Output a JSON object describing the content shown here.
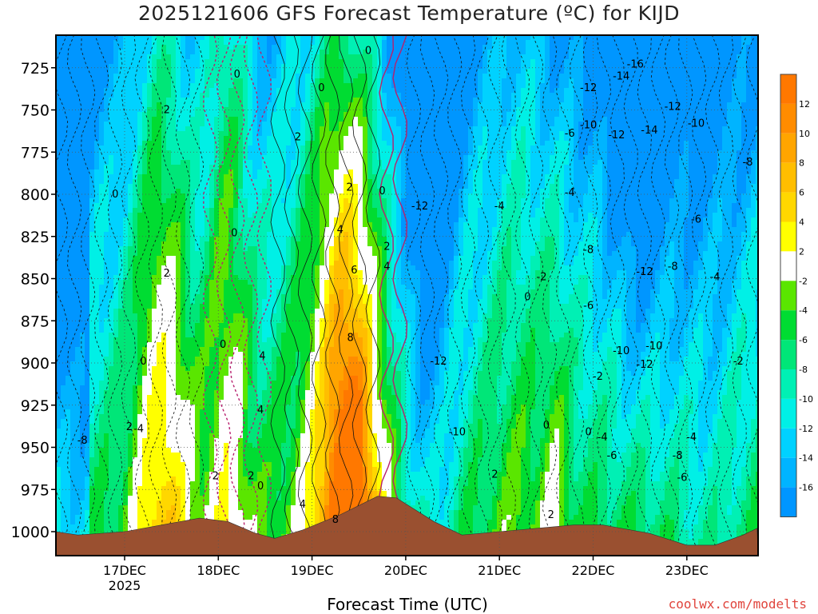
{
  "title": "2025121606 GFS Forecast Temperature (ºC) for KIJD",
  "xlabel": "Forecast Time (UTC)",
  "credit": "coolwx.com/modelts",
  "colors": {
    "ground": "#9a5030",
    "pos_contour": "#000000",
    "neg_contour": "#1a1a1a",
    "zero_contour": "#b8206e"
  },
  "chart_data": {
    "type": "heatmap",
    "variable": "Temperature",
    "units": "ºC",
    "y_ticks": [
      725,
      750,
      775,
      800,
      825,
      850,
      875,
      900,
      925,
      950,
      975,
      1000
    ],
    "ylim": [
      1012,
      714
    ],
    "x_ticks": [
      "17DEC",
      "18DEC",
      "19DEC",
      "20DEC",
      "21DEC",
      "22DEC",
      "23DEC"
    ],
    "x_tick_sublabel": "2025",
    "xlim_days": [
      16.25,
      23.75
    ],
    "colorbar": {
      "ticks": [
        "12",
        "10",
        "8",
        "6",
        "4",
        "2",
        "-2",
        "-4",
        "-6",
        "-8",
        "-10",
        "-12",
        "-14",
        "-16"
      ],
      "bins": [
        {
          "min": 12,
          "max": 14,
          "color": "#ff7800"
        },
        {
          "min": 10,
          "max": 12,
          "color": "#ff8c00"
        },
        {
          "min": 8,
          "max": 10,
          "color": "#ffa500"
        },
        {
          "min": 6,
          "max": 8,
          "color": "#ffbe00"
        },
        {
          "min": 4,
          "max": 6,
          "color": "#ffd700"
        },
        {
          "min": 2,
          "max": 4,
          "color": "#ffff00"
        },
        {
          "min": -2,
          "max": 2,
          "color": "#ffffff"
        },
        {
          "min": -4,
          "max": -2,
          "color": "#5ae600"
        },
        {
          "min": -6,
          "max": -4,
          "color": "#00dc32"
        },
        {
          "min": -8,
          "max": -6,
          "color": "#00e678"
        },
        {
          "min": -10,
          "max": -8,
          "color": "#00f0b4"
        },
        {
          "min": -12,
          "max": -10,
          "color": "#00f0e6"
        },
        {
          "min": -14,
          "max": -12,
          "color": "#00d2ff"
        },
        {
          "min": -16,
          "max": -14,
          "color": "#00b4ff"
        },
        {
          "min": -18,
          "max": -16,
          "color": "#0096ff"
        }
      ]
    },
    "contour_labels": [
      {
        "text": "0",
        "day": 16.9,
        "p": 800
      },
      {
        "text": "2",
        "day": 17.45,
        "p": 750
      },
      {
        "text": "0",
        "day": 18.2,
        "p": 729
      },
      {
        "text": "0",
        "day": 19.1,
        "p": 737
      },
      {
        "text": "0",
        "day": 19.6,
        "p": 715
      },
      {
        "text": "2",
        "day": 18.85,
        "p": 766
      },
      {
        "text": "2",
        "day": 19.4,
        "p": 796
      },
      {
        "text": "0",
        "day": 19.75,
        "p": 798
      },
      {
        "text": "4",
        "day": 19.3,
        "p": 821
      },
      {
        "text": "6",
        "day": 19.45,
        "p": 845
      },
      {
        "text": "2",
        "day": 19.8,
        "p": 831
      },
      {
        "text": "4",
        "day": 19.8,
        "p": 843
      },
      {
        "text": "8",
        "day": 19.41,
        "p": 885
      },
      {
        "text": "0",
        "day": 18.17,
        "p": 823
      },
      {
        "text": "2",
        "day": 17.45,
        "p": 847
      },
      {
        "text": "0",
        "day": 18.05,
        "p": 889
      },
      {
        "text": "4",
        "day": 18.47,
        "p": 896
      },
      {
        "text": "4",
        "day": 18.45,
        "p": 928
      },
      {
        "text": "0",
        "day": 17.2,
        "p": 899
      },
      {
        "text": "-4",
        "day": 17.15,
        "p": 939
      },
      {
        "text": "-8",
        "day": 16.55,
        "p": 946
      },
      {
        "text": "2",
        "day": 17.05,
        "p": 938
      },
      {
        "text": "2",
        "day": 17.97,
        "p": 967
      },
      {
        "text": "2",
        "day": 18.35,
        "p": 967
      },
      {
        "text": "0",
        "day": 18.45,
        "p": 973
      },
      {
        "text": "4",
        "day": 18.9,
        "p": 984
      },
      {
        "text": "8",
        "day": 19.25,
        "p": 993
      },
      {
        "text": "-12",
        "day": 20.15,
        "p": 807
      },
      {
        "text": "-12",
        "day": 20.35,
        "p": 899
      },
      {
        "text": "-10",
        "day": 20.55,
        "p": 941
      },
      {
        "text": "-4",
        "day": 21.0,
        "p": 807
      },
      {
        "text": "0",
        "day": 21.3,
        "p": 861
      },
      {
        "text": "-2",
        "day": 21.45,
        "p": 849
      },
      {
        "text": "2",
        "day": 20.95,
        "p": 966
      },
      {
        "text": "0",
        "day": 21.5,
        "p": 937
      },
      {
        "text": "2",
        "day": 21.55,
        "p": 990
      },
      {
        "text": "0",
        "day": 21.95,
        "p": 941
      },
      {
        "text": "-4",
        "day": 22.1,
        "p": 944
      },
      {
        "text": "-2",
        "day": 22.05,
        "p": 908
      },
      {
        "text": "-6",
        "day": 22.2,
        "p": 955
      },
      {
        "text": "-4",
        "day": 21.75,
        "p": 799
      },
      {
        "text": "-6",
        "day": 21.75,
        "p": 764
      },
      {
        "text": "-10",
        "day": 21.95,
        "p": 759
      },
      {
        "text": "-12",
        "day": 21.95,
        "p": 737
      },
      {
        "text": "-12",
        "day": 22.25,
        "p": 765
      },
      {
        "text": "-14",
        "day": 22.3,
        "p": 730
      },
      {
        "text": "-16",
        "day": 22.45,
        "p": 723
      },
      {
        "text": "-14",
        "day": 22.6,
        "p": 762
      },
      {
        "text": "-12",
        "day": 22.85,
        "p": 748
      },
      {
        "text": "-10",
        "day": 23.1,
        "p": 758
      },
      {
        "text": "-8",
        "day": 21.95,
        "p": 833
      },
      {
        "text": "-12",
        "day": 22.55,
        "p": 846
      },
      {
        "text": "-6",
        "day": 21.95,
        "p": 866
      },
      {
        "text": "-10",
        "day": 22.3,
        "p": 893
      },
      {
        "text": "-10",
        "day": 22.65,
        "p": 890
      },
      {
        "text": "-12",
        "day": 22.55,
        "p": 901
      },
      {
        "text": "-8",
        "day": 22.85,
        "p": 843
      },
      {
        "text": "-6",
        "day": 23.1,
        "p": 815
      },
      {
        "text": "-4",
        "day": 23.3,
        "p": 849
      },
      {
        "text": "-8",
        "day": 23.65,
        "p": 781
      },
      {
        "text": "-2",
        "day": 23.55,
        "p": 899
      },
      {
        "text": "-4",
        "day": 23.05,
        "p": 944
      },
      {
        "text": "-8",
        "day": 22.9,
        "p": 955
      },
      {
        "text": "-6",
        "day": 22.95,
        "p": 968
      }
    ]
  }
}
